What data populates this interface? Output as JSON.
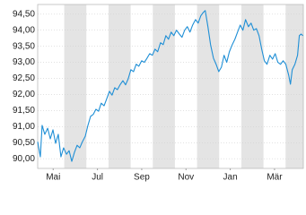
{
  "chart_data": {
    "type": "line",
    "x": [
      -0.2,
      -0.08,
      0.0,
      0.12,
      0.25,
      0.37,
      0.49,
      0.61,
      0.73,
      0.85,
      0.97,
      1.1,
      1.22,
      1.34,
      1.46,
      1.58,
      1.7,
      1.82,
      1.95,
      2.07,
      2.19,
      2.31,
      2.43,
      2.55,
      2.67,
      2.8,
      2.92,
      3.04,
      3.16,
      3.28,
      3.4,
      3.52,
      3.65,
      3.77,
      3.89,
      4.01,
      4.13,
      4.25,
      4.37,
      4.5,
      4.62,
      4.74,
      4.86,
      4.98,
      5.1,
      5.22,
      5.35,
      5.47,
      5.59,
      5.71,
      5.83,
      5.95,
      6.07,
      6.2,
      6.32,
      6.44,
      6.56,
      6.68,
      6.8,
      6.93,
      7.05,
      7.17,
      7.29,
      7.37,
      7.49,
      7.61,
      7.74,
      7.86,
      7.98,
      8.1,
      8.22,
      8.34,
      8.46,
      8.59,
      8.71,
      8.83,
      8.95,
      9.07,
      9.19,
      9.32,
      9.44,
      9.56,
      9.68,
      9.8,
      9.92,
      10.04,
      10.16,
      10.29,
      10.41,
      10.53,
      10.65,
      10.77,
      10.89,
      11.01,
      11.14,
      11.22,
      11.3,
      11.42,
      11.54,
      11.62,
      11.7,
      11.78
    ],
    "series": [
      {
        "color": "#1f8fd6",
        "values": [
          90.53,
          90.06,
          91.04,
          90.76,
          90.95,
          90.62,
          90.9,
          90.48,
          90.76,
          90.06,
          90.34,
          90.14,
          90.25,
          89.92,
          90.2,
          90.42,
          90.34,
          90.53,
          90.7,
          91.04,
          91.32,
          91.38,
          91.54,
          91.48,
          91.73,
          91.65,
          91.87,
          92.1,
          91.98,
          92.21,
          92.15,
          92.3,
          92.43,
          92.3,
          92.49,
          92.77,
          92.71,
          92.94,
          92.88,
          93.05,
          93.0,
          93.13,
          93.27,
          93.22,
          93.41,
          93.33,
          93.61,
          93.55,
          93.83,
          93.72,
          93.94,
          93.83,
          94.0,
          93.88,
          93.78,
          94.0,
          94.11,
          93.94,
          94.16,
          94.33,
          94.22,
          94.45,
          94.56,
          94.61,
          94.11,
          93.55,
          93.13,
          92.94,
          92.71,
          92.85,
          93.22,
          93.0,
          93.33,
          93.55,
          93.72,
          93.94,
          94.16,
          94.0,
          94.33,
          94.11,
          94.22,
          94.0,
          94.05,
          93.83,
          93.41,
          93.05,
          92.94,
          93.22,
          93.1,
          93.27,
          93.0,
          92.94,
          93.05,
          92.94,
          92.6,
          92.32,
          92.77,
          92.94,
          93.22,
          93.83,
          93.88,
          93.83
        ]
      }
    ],
    "xlim": [
      -0.2,
      11.8
    ],
    "xticks": [
      {
        "value": 0.5,
        "label": "Mai"
      },
      {
        "value": 2.5,
        "label": "Jul"
      },
      {
        "value": 4.5,
        "label": "Sep"
      },
      {
        "value": 6.5,
        "label": "Nov"
      },
      {
        "value": 8.5,
        "label": "Jan"
      },
      {
        "value": 10.5,
        "label": "Mär"
      }
    ],
    "ylim": [
      89.7,
      94.8
    ],
    "yticks": [
      {
        "value": 90,
        "label": "90,00"
      },
      {
        "value": 90.5,
        "label": "90,50"
      },
      {
        "value": 91,
        "label": "91,00"
      },
      {
        "value": 91.5,
        "label": "91,50"
      },
      {
        "value": 92,
        "label": "92,00"
      },
      {
        "value": 92.5,
        "label": "92,50"
      },
      {
        "value": 93,
        "label": "93,00"
      },
      {
        "value": 93.5,
        "label": "93,50"
      },
      {
        "value": 94,
        "label": "94,00"
      },
      {
        "value": 94.5,
        "label": "94,50"
      }
    ],
    "grid": true
  }
}
